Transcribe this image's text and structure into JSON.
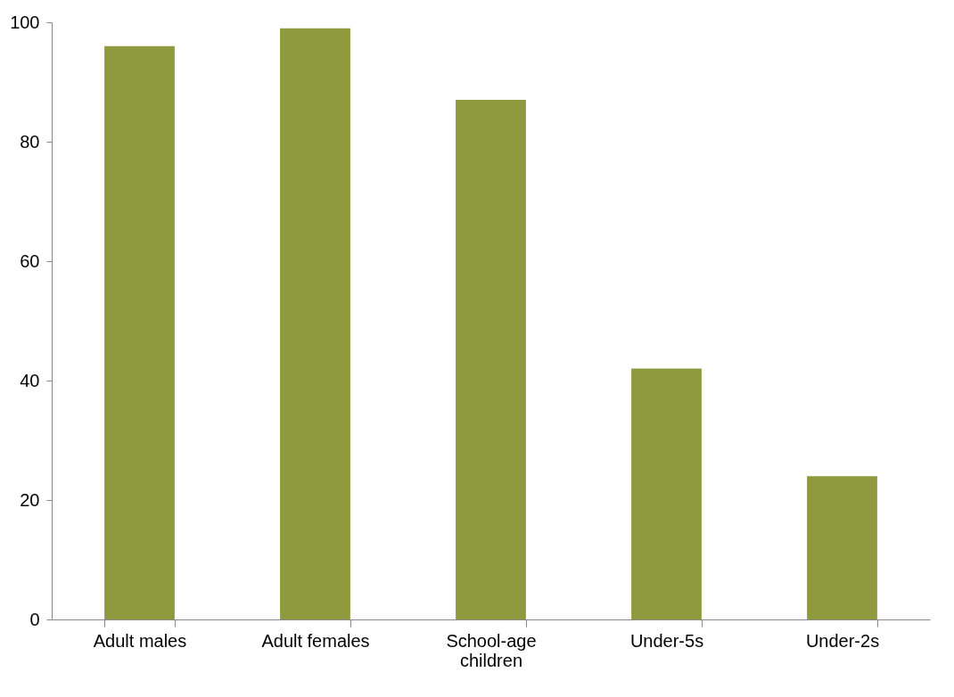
{
  "chart_data": {
    "type": "bar",
    "categories": [
      "Adult males",
      "Adult females",
      "School-age children",
      "Under-5s",
      "Under-2s"
    ],
    "values": [
      96,
      99,
      87,
      42,
      24
    ],
    "color": "#8f9a3f",
    "ylim": [
      0,
      100
    ],
    "yticks": [
      0,
      20,
      40,
      60,
      80,
      100
    ],
    "grid": false
  }
}
